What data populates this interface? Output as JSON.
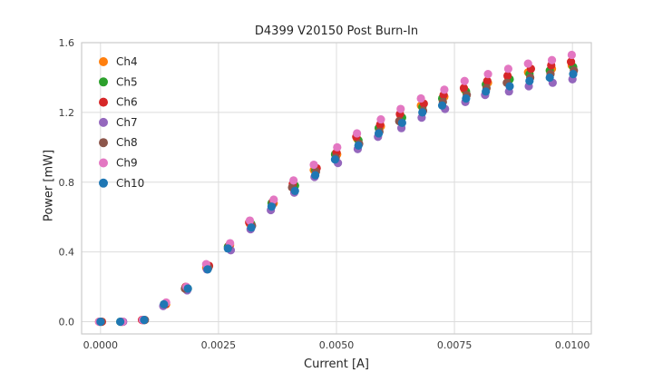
{
  "chart_data": {
    "type": "scatter",
    "title": "D4399 V20150 Post Burn-In",
    "xlabel": "Current [A]",
    "ylabel": "Power [mW]",
    "xlim": [
      -0.0004,
      0.0104
    ],
    "ylim": [
      -0.07,
      1.6
    ],
    "grid": true,
    "legend_position": "upper left",
    "xticks": [
      0.0,
      0.0025,
      0.005,
      0.0075,
      0.01
    ],
    "xtick_labels": [
      "0.0000",
      "0.0025",
      "0.0050",
      "0.0075",
      "0.0100"
    ],
    "yticks": [
      0.0,
      0.4,
      0.8,
      1.2,
      1.6
    ],
    "ytick_labels": [
      "0.0",
      "0.4",
      "0.8",
      "1.2",
      "1.6"
    ],
    "x": [
      0.0,
      0.00045,
      0.00091,
      0.00136,
      0.00182,
      0.00227,
      0.00273,
      0.00318,
      0.00364,
      0.00409,
      0.00455,
      0.005,
      0.00545,
      0.00591,
      0.00636,
      0.00682,
      0.00727,
      0.00773,
      0.00818,
      0.00864,
      0.00909,
      0.00955,
      0.01
    ],
    "series": [
      {
        "name": "Ch4",
        "color": "#ff7f0e",
        "values": [
          0.0,
          0.0,
          0.01,
          0.1,
          0.19,
          0.31,
          0.44,
          0.56,
          0.68,
          0.78,
          0.87,
          0.96,
          1.05,
          1.12,
          1.18,
          1.24,
          1.29,
          1.33,
          1.37,
          1.4,
          1.43,
          1.45,
          1.47
        ]
      },
      {
        "name": "Ch5",
        "color": "#2ca02c",
        "values": [
          0.0,
          0.0,
          0.01,
          0.1,
          0.19,
          0.31,
          0.43,
          0.56,
          0.68,
          0.78,
          0.87,
          0.96,
          1.04,
          1.11,
          1.17,
          1.23,
          1.28,
          1.32,
          1.36,
          1.39,
          1.42,
          1.44,
          1.46
        ]
      },
      {
        "name": "Ch6",
        "color": "#d62728",
        "values": [
          0.0,
          0.0,
          0.01,
          0.1,
          0.2,
          0.32,
          0.44,
          0.57,
          0.69,
          0.79,
          0.88,
          0.97,
          1.06,
          1.13,
          1.19,
          1.25,
          1.3,
          1.34,
          1.38,
          1.41,
          1.45,
          1.47,
          1.49
        ]
      },
      {
        "name": "Ch7",
        "color": "#9467bd",
        "values": [
          0.0,
          0.0,
          0.01,
          0.09,
          0.18,
          0.3,
          0.41,
          0.53,
          0.64,
          0.74,
          0.83,
          0.91,
          0.99,
          1.06,
          1.11,
          1.17,
          1.22,
          1.26,
          1.3,
          1.32,
          1.35,
          1.37,
          1.39
        ]
      },
      {
        "name": "Ch8",
        "color": "#8c564b",
        "values": [
          0.0,
          0.0,
          0.01,
          0.1,
          0.19,
          0.31,
          0.43,
          0.55,
          0.67,
          0.77,
          0.86,
          0.94,
          1.02,
          1.09,
          1.15,
          1.21,
          1.26,
          1.3,
          1.34,
          1.37,
          1.4,
          1.42,
          1.44
        ]
      },
      {
        "name": "Ch9",
        "color": "#e377c2",
        "values": [
          0.0,
          0.0,
          0.01,
          0.11,
          0.2,
          0.33,
          0.45,
          0.58,
          0.7,
          0.81,
          0.9,
          1.0,
          1.08,
          1.16,
          1.22,
          1.28,
          1.33,
          1.38,
          1.42,
          1.45,
          1.48,
          1.5,
          1.53
        ]
      },
      {
        "name": "Ch10",
        "color": "#1f77b4",
        "values": [
          0.0,
          0.0,
          0.01,
          0.1,
          0.19,
          0.3,
          0.42,
          0.54,
          0.66,
          0.75,
          0.84,
          0.93,
          1.01,
          1.08,
          1.14,
          1.2,
          1.24,
          1.28,
          1.32,
          1.35,
          1.38,
          1.4,
          1.42
        ]
      }
    ],
    "style": {
      "grid_color": "#dcdcdc",
      "spine_color": "#cccccc",
      "tick_color": "#3b3b3b",
      "marker_radius": 4.6
    }
  }
}
